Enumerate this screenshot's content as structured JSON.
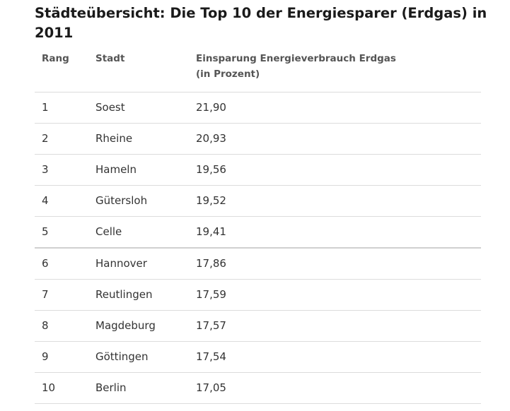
{
  "title": "Städteübersicht: Die Top 10 der Energiesparer (Erdgas) in 2011",
  "table": {
    "headers": {
      "rank": "Rang",
      "city": "Stadt",
      "value_line1": "Einsparung Energieverbrauch Erdgas",
      "value_line2": "(in Prozent)"
    },
    "rows": [
      {
        "rank": "1",
        "city": "Soest",
        "value": "21,90"
      },
      {
        "rank": "2",
        "city": "Rheine",
        "value": "20,93"
      },
      {
        "rank": "3",
        "city": "Hameln",
        "value": "19,56"
      },
      {
        "rank": "4",
        "city": "Gütersloh",
        "value": "19,52"
      },
      {
        "rank": "5",
        "city": "Celle",
        "value": "19,41"
      },
      {
        "rank": "6",
        "city": "Hannover",
        "value": "17,86"
      },
      {
        "rank": "7",
        "city": "Reutlingen",
        "value": "17,59"
      },
      {
        "rank": "8",
        "city": "Magdeburg",
        "value": "17,57"
      },
      {
        "rank": "9",
        "city": "Göttingen",
        "value": "17,54"
      },
      {
        "rank": "10",
        "city": "Berlin",
        "value": "17,05"
      }
    ]
  }
}
